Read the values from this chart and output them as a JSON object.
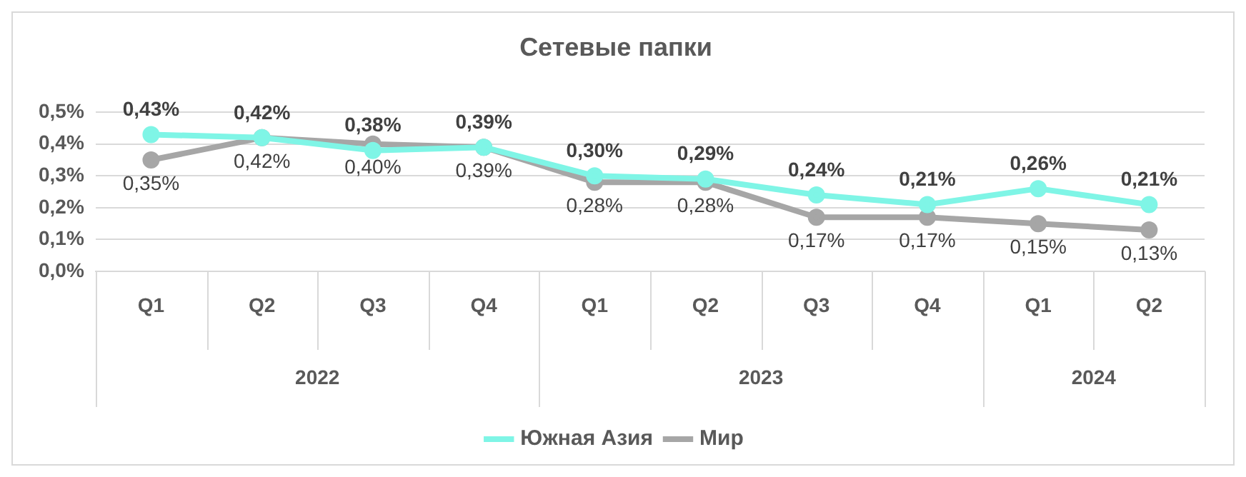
{
  "chart_data": {
    "type": "line",
    "title": "Сетевые папки",
    "categories": [
      "Q1",
      "Q2",
      "Q3",
      "Q4",
      "Q1",
      "Q2",
      "Q3",
      "Q4",
      "Q1",
      "Q2"
    ],
    "annotations": [
      "2022",
      "2023",
      "2024"
    ],
    "series": [
      {
        "name": "Южная Азия",
        "color": "#7ff5e6",
        "values": [
          0.43,
          0.42,
          0.38,
          0.39,
          0.3,
          0.29,
          0.24,
          0.21,
          0.26,
          0.21
        ],
        "value_labels": [
          "0,43%",
          "0,42%",
          "0,38%",
          "0,39%",
          "0,30%",
          "0,29%",
          "0,24%",
          "0,21%",
          "0,26%",
          "0,21%"
        ]
      },
      {
        "name": "Мир",
        "color": "#a6a6a6",
        "values": [
          0.35,
          0.42,
          0.4,
          0.39,
          0.28,
          0.28,
          0.17,
          0.17,
          0.15,
          0.13
        ],
        "value_labels": [
          "0,35%",
          "0,42%",
          "0,40%",
          "0,39%",
          "0,28%",
          "0,28%",
          "0,17%",
          "0,17%",
          "0,15%",
          "0,13%"
        ]
      }
    ],
    "ylim": [
      0,
      0.5
    ],
    "yticks": [
      {
        "value": 0,
        "label": "0,0%"
      },
      {
        "value": 0.1,
        "label": "0,1%"
      },
      {
        "value": 0.2,
        "label": "0,2%"
      },
      {
        "value": 0.3,
        "label": "0,3%"
      },
      {
        "value": 0.4,
        "label": "0,4%"
      },
      {
        "value": 0.5,
        "label": "0,5%"
      }
    ],
    "grid": "y",
    "legend": "bottom",
    "marker": "circle",
    "line_style": "solid"
  }
}
